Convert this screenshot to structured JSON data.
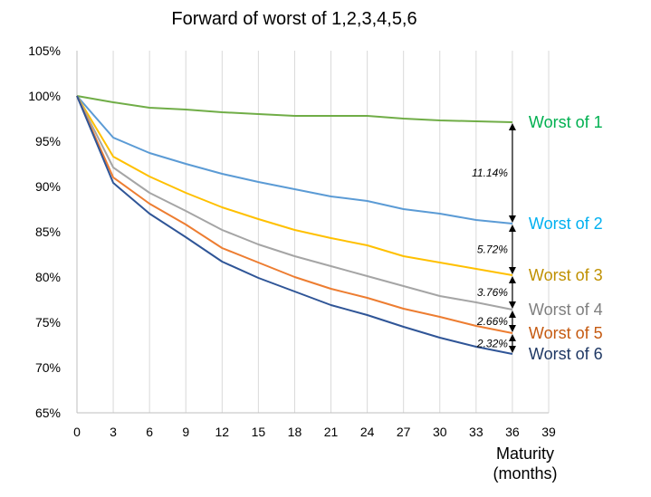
{
  "chart_data": {
    "type": "line",
    "title": "Forward of worst of 1,2,3,4,5,6",
    "xlabel": [
      "Maturity",
      "(months)"
    ],
    "ylabel": "",
    "xlim": [
      0,
      39
    ],
    "ylim": [
      65,
      105
    ],
    "x_ticks": [
      "0",
      "3",
      "6",
      "9",
      "12",
      "15",
      "18",
      "21",
      "24",
      "27",
      "30",
      "33",
      "36",
      "39"
    ],
    "y_ticks": [
      "65%",
      "70%",
      "75%",
      "80%",
      "85%",
      "90%",
      "95%",
      "100%",
      "105%"
    ],
    "grid": "vertical",
    "x": [
      0,
      3,
      6,
      9,
      12,
      15,
      18,
      21,
      24,
      27,
      30,
      33,
      36
    ],
    "series": [
      {
        "name": "Worst of 1",
        "color": "#70AD47",
        "values": [
          100,
          99.3,
          98.7,
          98.5,
          98.2,
          98.0,
          97.8,
          97.8,
          97.8,
          97.5,
          97.3,
          97.2,
          97.1
        ]
      },
      {
        "name": "Worst of 2",
        "color": "#5B9BD5",
        "values": [
          100,
          95.4,
          93.7,
          92.5,
          91.4,
          90.5,
          89.7,
          88.9,
          88.4,
          87.5,
          87.0,
          86.3,
          85.9
        ]
      },
      {
        "name": "Worst of 3",
        "color": "#FFC000",
        "values": [
          100,
          93.3,
          91.1,
          89.3,
          87.7,
          86.4,
          85.2,
          84.3,
          83.5,
          82.3,
          81.6,
          80.9,
          80.2
        ]
      },
      {
        "name": "Worst of 4",
        "color": "#A5A5A5",
        "values": [
          100,
          92.1,
          89.3,
          87.3,
          85.2,
          83.6,
          82.3,
          81.2,
          80.1,
          79.0,
          77.9,
          77.2,
          76.4
        ]
      },
      {
        "name": "Worst of 5",
        "color": "#ED7D31",
        "values": [
          100,
          91.0,
          88.1,
          85.8,
          83.2,
          81.6,
          80.0,
          78.7,
          77.7,
          76.5,
          75.6,
          74.6,
          73.8
        ]
      },
      {
        "name": "Worst of 6",
        "color": "#2F5597",
        "values": [
          100,
          90.4,
          87.0,
          84.4,
          81.7,
          79.9,
          78.4,
          76.9,
          75.8,
          74.5,
          73.3,
          72.3,
          71.5
        ]
      }
    ],
    "label_colors": [
      "#00B050",
      "#00B0F0",
      "#BF9000",
      "#7F7F7F",
      "#C55A11",
      "#1F3864"
    ],
    "annotations": [
      {
        "text": "11.14%",
        "from": 97.1,
        "to": 85.9
      },
      {
        "text": "5.72%",
        "from": 85.9,
        "to": 80.2
      },
      {
        "text": "3.76%",
        "from": 80.2,
        "to": 76.4
      },
      {
        "text": "2.66%",
        "from": 76.4,
        "to": 73.8
      },
      {
        "text": "2.32%",
        "from": 73.8,
        "to": 71.5
      }
    ]
  }
}
